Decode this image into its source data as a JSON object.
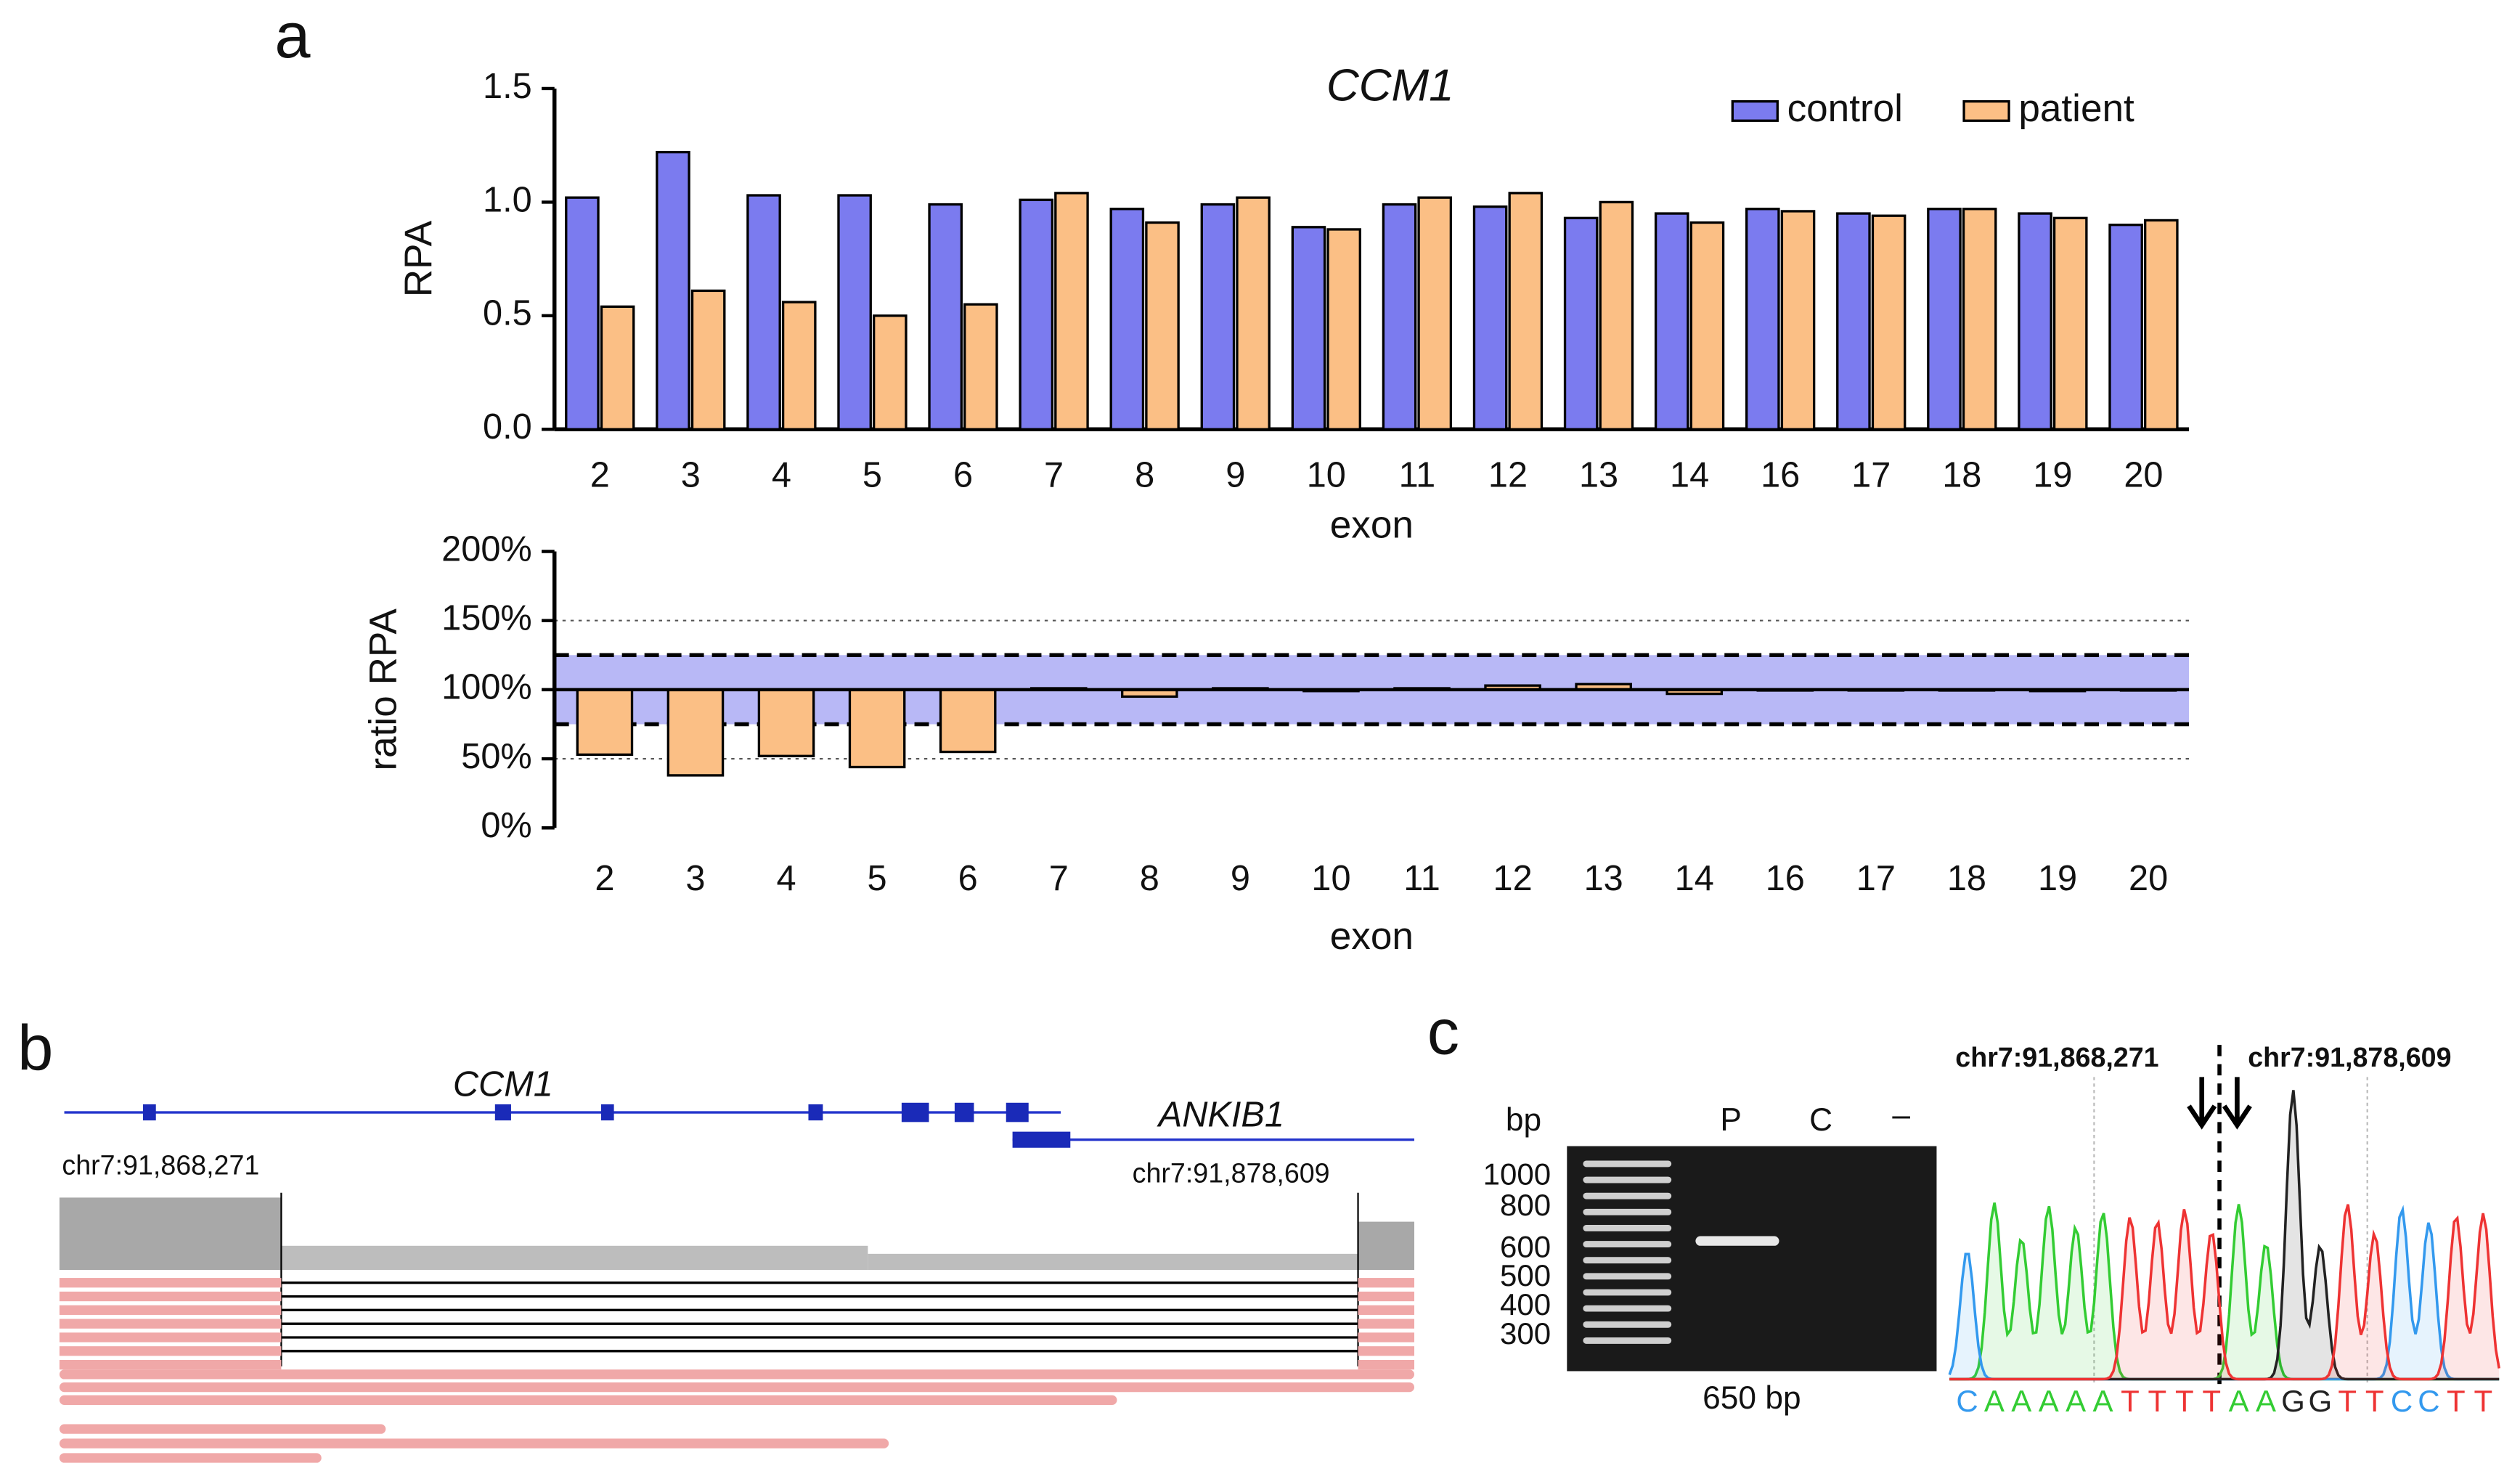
{
  "panel_labels": [
    "a",
    "b",
    "c"
  ],
  "chart_data": [
    {
      "type": "bar",
      "title": "CCM1",
      "ylabel": "RPA",
      "xlabel": "exon",
      "categories": [
        "2",
        "3",
        "4",
        "5",
        "6",
        "7",
        "8",
        "9",
        "10",
        "11",
        "12",
        "13",
        "14",
        "16",
        "17",
        "18",
        "19",
        "20"
      ],
      "series": [
        {
          "name": "control",
          "color": "#7b7bef",
          "values": [
            1.02,
            1.22,
            1.03,
            1.03,
            0.99,
            1.01,
            0.97,
            0.99,
            0.89,
            0.99,
            0.98,
            0.93,
            0.95,
            0.97,
            0.95,
            0.97,
            0.95,
            0.9
          ]
        },
        {
          "name": "patient",
          "color": "#fbbf85",
          "values": [
            0.54,
            0.61,
            0.56,
            0.5,
            0.55,
            1.04,
            0.91,
            1.02,
            0.88,
            1.02,
            1.04,
            1.0,
            0.91,
            0.96,
            0.94,
            0.97,
            0.93,
            0.92
          ]
        }
      ],
      "ylim": [
        0,
        1.5
      ],
      "yticks": [
        {
          "value": 0,
          "label": "0.0"
        },
        0.5,
        {
          "value": 1,
          "label": "1.0"
        },
        1.5
      ],
      "legend": "top-right"
    },
    {
      "type": "bar",
      "ylabel": "ratio RPA",
      "xlabel": "exon",
      "categories": [
        "2",
        "3",
        "4",
        "5",
        "6",
        "7",
        "8",
        "9",
        "10",
        "11",
        "12",
        "13",
        "14",
        "16",
        "17",
        "18",
        "19",
        "20"
      ],
      "values": [
        53,
        38,
        52,
        44,
        55,
        101,
        95,
        101,
        99,
        101,
        103,
        104,
        97,
        100,
        100,
        100,
        99,
        100
      ],
      "color": "#fbbf85",
      "baseline": 100,
      "band": [
        75,
        125
      ],
      "band_color": "#b8b8f6",
      "reference_lines": [
        50,
        150
      ],
      "ylim": [
        0,
        200
      ],
      "yticks": [
        {
          "value": 0,
          "label": "0%"
        },
        {
          "value": 50,
          "label": "50%"
        },
        {
          "value": 100,
          "label": "100%"
        },
        {
          "value": 150,
          "label": "150%"
        },
        {
          "value": 200,
          "label": "200%"
        }
      ]
    }
  ],
  "igv": {
    "gene_labels": [
      "CCM1",
      "ANKIB1"
    ],
    "breakpoints": [
      "chr7:91,868,271",
      "chr7:91,878,609"
    ]
  },
  "gel": {
    "unit": "bp",
    "ladder": [
      "1000",
      "800",
      "600",
      "500",
      "400",
      "300"
    ],
    "lanes": [
      "P",
      "C",
      "–"
    ],
    "product": "650 bp"
  },
  "chromatogram": {
    "breakpoints": [
      "chr7:91,868,271",
      "chr7:91,878,609"
    ],
    "sequence": [
      "C",
      "A",
      "A",
      "A",
      "A",
      "A",
      "T",
      "T",
      "T",
      "T",
      "A",
      "A",
      "G",
      "G",
      "T",
      "T",
      "C",
      "C",
      "T",
      "T"
    ],
    "base_colors": {
      "A": "#33cc33",
      "C": "#3399ee",
      "G": "#222222",
      "T": "#ee3333"
    }
  }
}
